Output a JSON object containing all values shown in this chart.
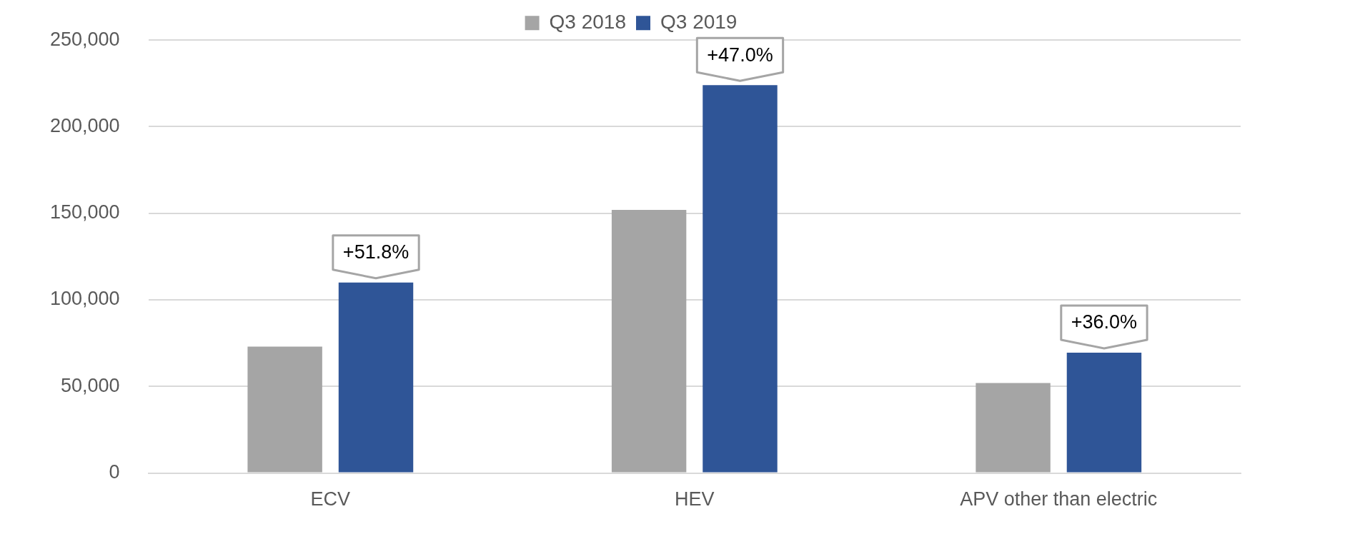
{
  "chart_data": {
    "type": "bar",
    "categories": [
      "ECV",
      "HEV",
      "APV other than electric"
    ],
    "series": [
      {
        "name": "Q3 2018",
        "color": "#a5a5a5",
        "values": [
          73000,
          152000,
          52000
        ]
      },
      {
        "name": "Q3 2019",
        "color": "#2f5597",
        "values": [
          110000,
          224000,
          69500
        ]
      }
    ],
    "ylim": [
      0,
      250000
    ],
    "yticks": [
      0,
      {
        "value": 50000,
        "label": "50,000"
      },
      {
        "value": 100000,
        "label": "100,000"
      },
      {
        "value": 150000,
        "label": "150,000"
      },
      {
        "value": 200000,
        "label": "200,000"
      },
      {
        "value": 250000,
        "label": "250,000"
      }
    ],
    "grid": "y",
    "legend": "top",
    "annotations": [
      "+51.8%",
      "+47.0%",
      "+36.0%"
    ]
  }
}
